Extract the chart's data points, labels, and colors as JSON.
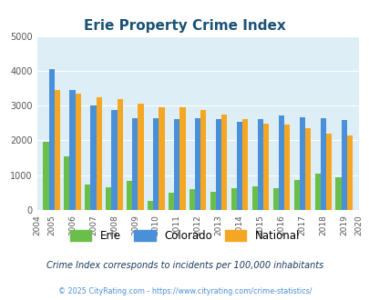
{
  "title": "Erie Property Crime Index",
  "years": [
    2004,
    2005,
    2006,
    2007,
    2008,
    2009,
    2010,
    2011,
    2012,
    2013,
    2014,
    2015,
    2016,
    2017,
    2018,
    2019,
    2020
  ],
  "erie": [
    null,
    1950,
    1540,
    720,
    660,
    830,
    270,
    490,
    590,
    520,
    630,
    670,
    620,
    860,
    1050,
    950,
    null
  ],
  "colorado": [
    null,
    4050,
    3450,
    3000,
    2870,
    2640,
    2640,
    2600,
    2630,
    2620,
    2540,
    2600,
    2720,
    2670,
    2640,
    2590,
    null
  ],
  "national": [
    null,
    3450,
    3350,
    3250,
    3200,
    3050,
    2960,
    2940,
    2880,
    2730,
    2600,
    2490,
    2450,
    2360,
    2200,
    2130,
    null
  ],
  "erie_color": "#6abf4b",
  "colorado_color": "#4a90d9",
  "national_color": "#f5a623",
  "bg_color": "#ddeef6",
  "ylim": [
    0,
    5000
  ],
  "yticks": [
    0,
    1000,
    2000,
    3000,
    4000,
    5000
  ],
  "subtitle": "Crime Index corresponds to incidents per 100,000 inhabitants",
  "footer": "© 2025 CityRating.com - https://www.cityrating.com/crime-statistics/",
  "title_color": "#1a5276",
  "subtitle_color": "#1a3a5c",
  "footer_color": "#4a90d9",
  "legend_labels": [
    "Erie",
    "Colorado",
    "National"
  ]
}
